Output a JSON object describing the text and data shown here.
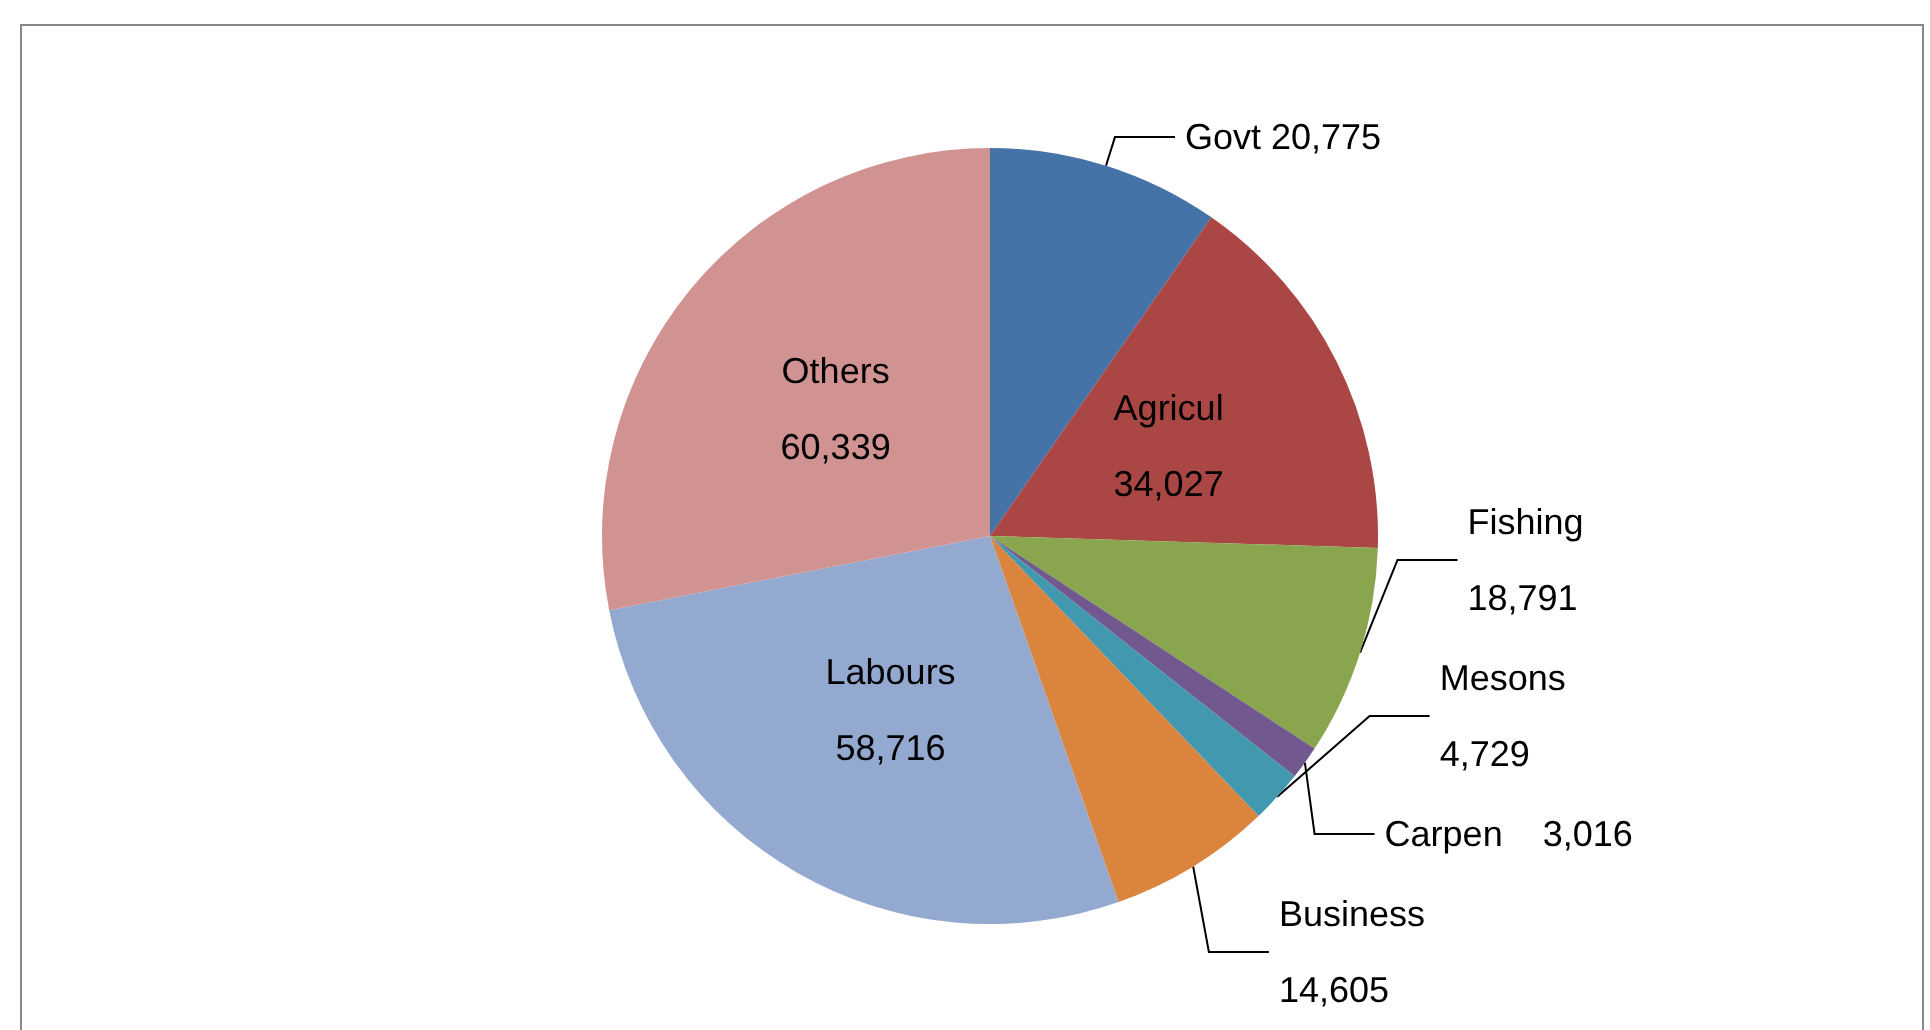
{
  "chart_data": {
    "type": "pie",
    "categories": [
      "Govt",
      "Agricul",
      "Fishing",
      "Carpen",
      "Mesons",
      "Business",
      "Labours",
      "Others"
    ],
    "values": [
      20775,
      34027,
      18791,
      3016,
      4729,
      14605,
      58716,
      60339
    ],
    "value_labels": [
      "20,775",
      "34,027",
      "18,791",
      "3,016",
      "4,729",
      "14,605",
      "58,716",
      "60,339"
    ],
    "colors": [
      "#4572a7",
      "#aa4643",
      "#89a54e",
      "#71588f",
      "#4198af",
      "#db843d",
      "#93a9cf",
      "#d19392"
    ],
    "legend": false
  }
}
